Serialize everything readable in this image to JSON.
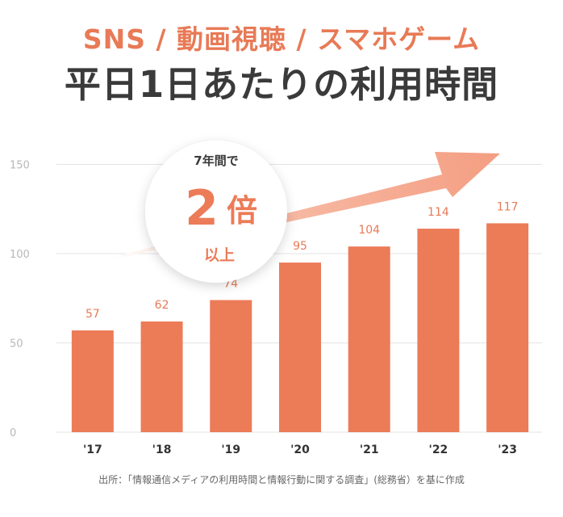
{
  "title_top": "SNS / 動画視聴 / スマホゲーム",
  "title_main": "平日1日あたりの利用時間",
  "badge": {
    "line1": "7年間で",
    "number": "2",
    "unit": "倍",
    "line3": "以上"
  },
  "footnote": "出所：「情報通信メディアの利用時間と情報行動に関する調査」(総務省）を基に作成",
  "colors": {
    "bar": "#ec7b58",
    "accent": "#e87a56",
    "grid": "#e3e3e3",
    "tick": "#b8b8b8",
    "title": "#3a3a3a"
  },
  "chart_data": {
    "type": "bar",
    "categories": [
      "'17",
      "'18",
      "'19",
      "'20",
      "'21",
      "'22",
      "'23"
    ],
    "values": [
      57,
      62,
      74,
      95,
      104,
      114,
      117
    ],
    "title": "平日1日あたりの利用時間",
    "xlabel": "",
    "ylabel": "",
    "ylim": [
      0,
      160
    ],
    "yticks": [
      0,
      50,
      100,
      150
    ],
    "grid": true,
    "data_labels": true
  }
}
